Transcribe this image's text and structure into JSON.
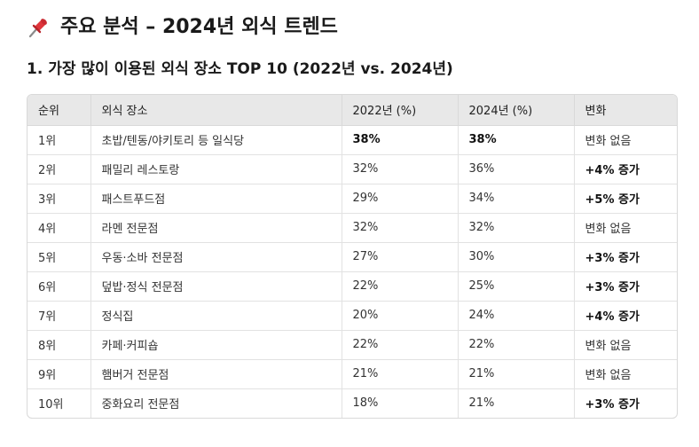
{
  "heading": {
    "icon": "pushpin-icon",
    "icon_color": "#e0363c",
    "text": "주요 분석 – 2024년 외식 트렌드"
  },
  "section": {
    "title": "1. 가장 많이 이용된 외식 장소 TOP 10 (2022년 vs. 2024년)"
  },
  "table": {
    "headers": [
      "순위",
      "외식 장소",
      "2022년 (%)",
      "2024년 (%)",
      "변화"
    ],
    "rows": [
      {
        "rank": "1위",
        "place": "초밥/텐동/야키토리 등 일식당",
        "y2022": "38%",
        "y2024": "38%",
        "change": "변화 없음",
        "emph_values": true,
        "emph_change": false
      },
      {
        "rank": "2위",
        "place": "패밀리 레스토랑",
        "y2022": "32%",
        "y2024": "36%",
        "change": "+4% 증가",
        "emph_values": false,
        "emph_change": true
      },
      {
        "rank": "3위",
        "place": "패스트푸드점",
        "y2022": "29%",
        "y2024": "34%",
        "change": "+5% 증가",
        "emph_values": false,
        "emph_change": true
      },
      {
        "rank": "4위",
        "place": "라멘 전문점",
        "y2022": "32%",
        "y2024": "32%",
        "change": "변화 없음",
        "emph_values": false,
        "emph_change": false
      },
      {
        "rank": "5위",
        "place": "우동·소바 전문점",
        "y2022": "27%",
        "y2024": "30%",
        "change": "+3% 증가",
        "emph_values": false,
        "emph_change": true
      },
      {
        "rank": "6위",
        "place": "덮밥·정식 전문점",
        "y2022": "22%",
        "y2024": "25%",
        "change": "+3% 증가",
        "emph_values": false,
        "emph_change": true
      },
      {
        "rank": "7위",
        "place": "정식집",
        "y2022": "20%",
        "y2024": "24%",
        "change": "+4% 증가",
        "emph_values": false,
        "emph_change": true
      },
      {
        "rank": "8위",
        "place": "카페·커피숍",
        "y2022": "22%",
        "y2024": "22%",
        "change": "변화 없음",
        "emph_values": false,
        "emph_change": false
      },
      {
        "rank": "9위",
        "place": "햄버거 전문점",
        "y2022": "21%",
        "y2024": "21%",
        "change": "변화 없음",
        "emph_values": false,
        "emph_change": false
      },
      {
        "rank": "10위",
        "place": "중화요리 전문점",
        "y2022": "18%",
        "y2024": "21%",
        "change": "+3% 증가",
        "emph_values": false,
        "emph_change": true
      }
    ]
  }
}
